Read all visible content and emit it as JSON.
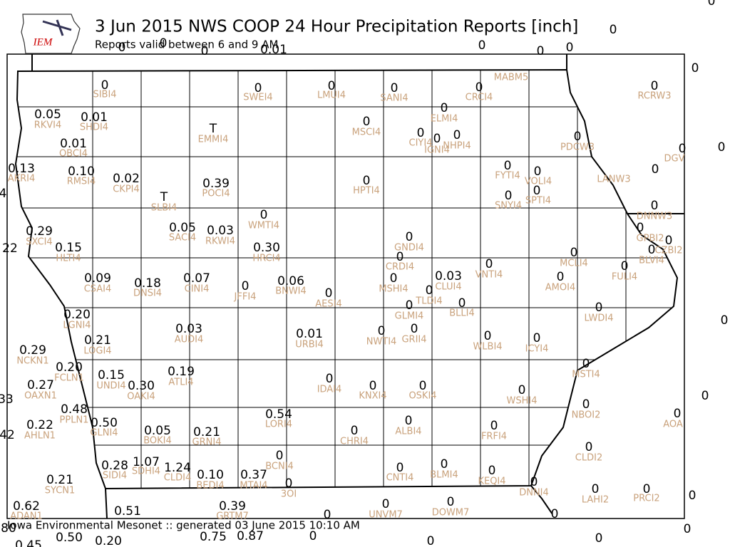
{
  "header": {
    "logo": "IEM",
    "title": "3 Jun 2015 NWS COOP 24 Hour Precipitation Reports [inch]",
    "subtitle": "Reports valid between 6 and 9 AM"
  },
  "footer": "Iowa Environmental Mesonet :: generated 03 June 2015 10:10 AM",
  "stations": [
    {
      "value": "0",
      "id": "SIBI4"
    },
    {
      "value": "0",
      "id": "SWEI4"
    },
    {
      "value": "0",
      "id": "LMUI4"
    },
    {
      "value": "0",
      "id": "SANI4"
    },
    {
      "value": "0",
      "id": "CRCI4"
    },
    {
      "value": "0",
      "id": "MABM5"
    },
    {
      "value": "0",
      "id": "RCRW3"
    },
    {
      "value": "0",
      "id": "ELMI4"
    },
    {
      "value": "0.05",
      "id": "RKVI4"
    },
    {
      "value": "0.01",
      "id": "SHDI4"
    },
    {
      "value": "T",
      "id": "EMMI4"
    },
    {
      "value": "0",
      "id": "MSCI4"
    },
    {
      "value": "0",
      "id": "CIYI4"
    },
    {
      "value": "0",
      "id": "IGNI4"
    },
    {
      "value": "0",
      "id": "NHPI4"
    },
    {
      "value": "0",
      "id": "PDCW3"
    },
    {
      "value": "0.01",
      "id": "OBCI4"
    },
    {
      "value": "0",
      "id": "DGV"
    },
    {
      "value": "0.13",
      "id": "AKRI4"
    },
    {
      "value": "0.10",
      "id": "RMSI4"
    },
    {
      "value": "0.02",
      "id": "CKPI4"
    },
    {
      "value": "0.39",
      "id": "POCI4"
    },
    {
      "value": "0",
      "id": "HPTI4"
    },
    {
      "value": "0",
      "id": "FYTI4"
    },
    {
      "value": "0",
      "id": "VOLI4"
    },
    {
      "value": "0",
      "id": "LANW3"
    },
    {
      "value": "T",
      "id": "SLBI4"
    },
    {
      "value": "0",
      "id": "SNYI4"
    },
    {
      "value": "0",
      "id": "SPTI4"
    },
    {
      "value": "0",
      "id": "DNNW3"
    },
    {
      "value": "0",
      "id": "WMTI4"
    },
    {
      "value": "0.29",
      "id": "SXCI4"
    },
    {
      "value": "0.05",
      "id": "SACI4"
    },
    {
      "value": "0.03",
      "id": "RKWI4"
    },
    {
      "value": "0",
      "id": "GNDI4"
    },
    {
      "value": "0",
      "id": "GPBI2"
    },
    {
      "value": "0",
      "id": "CZBI2"
    },
    {
      "value": "0.15",
      "id": "HLTI4"
    },
    {
      "value": "0.30",
      "id": "HRCI4"
    },
    {
      "value": "0",
      "id": "CRDI4"
    },
    {
      "value": "0",
      "id": "MCLI4"
    },
    {
      "value": "0",
      "id": "BLVI4"
    },
    {
      "value": "0",
      "id": "VNTI4"
    },
    {
      "value": "0",
      "id": "FULI4"
    },
    {
      "value": "0.09",
      "id": "CSAI4"
    },
    {
      "value": "0.18",
      "id": "DNSI4"
    },
    {
      "value": "0.07",
      "id": "CINI4"
    },
    {
      "value": "0",
      "id": "JFFI4"
    },
    {
      "value": "0.06",
      "id": "BNWI4"
    },
    {
      "value": "0",
      "id": "MSHI4"
    },
    {
      "value": "0.03",
      "id": "CLUI4"
    },
    {
      "value": "0",
      "id": "AMOI4"
    },
    {
      "value": "0",
      "id": "TLDI4"
    },
    {
      "value": "0",
      "id": "AESI4"
    },
    {
      "value": "0",
      "id": "BLLI4"
    },
    {
      "value": "0",
      "id": "GLMI4"
    },
    {
      "value": "0",
      "id": "LWDI4"
    },
    {
      "value": "0.20",
      "id": "LGNI4"
    },
    {
      "value": "0.03",
      "id": "AUDI4"
    },
    {
      "value": "0.01",
      "id": "URBI4"
    },
    {
      "value": "0",
      "id": "NWTI4"
    },
    {
      "value": "0",
      "id": "GRII4"
    },
    {
      "value": "0",
      "id": "WLBI4"
    },
    {
      "value": "0",
      "id": "ICYI4"
    },
    {
      "value": "0.21",
      "id": "LOGI4"
    },
    {
      "value": "0.29",
      "id": "NCKN1"
    },
    {
      "value": "0.19",
      "id": "ATLI4"
    },
    {
      "value": "0.20",
      "id": "FCLN1"
    },
    {
      "value": "0.15",
      "id": "UNDI4"
    },
    {
      "value": "0.30",
      "id": "OAKI4"
    },
    {
      "value": "0",
      "id": "MSTI4"
    },
    {
      "value": "0",
      "id": "IDAI4"
    },
    {
      "value": "0",
      "id": "KNXI4"
    },
    {
      "value": "0",
      "id": "OSKI4"
    },
    {
      "value": "0.27",
      "id": "OAXN1"
    },
    {
      "value": "0",
      "id": "WSHI4"
    },
    {
      "value": "0.48",
      "id": "PPLN1"
    },
    {
      "value": "0.54",
      "id": "LORI4"
    },
    {
      "value": "0",
      "id": "NBOI2"
    },
    {
      "value": "0",
      "id": "AOA"
    },
    {
      "value": "0.22",
      "id": "AHLN1"
    },
    {
      "value": "0.50",
      "id": "GLNI4"
    },
    {
      "value": "0.05",
      "id": "BOKI4"
    },
    {
      "value": "0.21",
      "id": "GRNI4"
    },
    {
      "value": "0",
      "id": "CHRI4"
    },
    {
      "value": "0",
      "id": "ALBI4"
    },
    {
      "value": "0",
      "id": "FRFI4"
    },
    {
      "value": "0",
      "id": "CLDI2"
    },
    {
      "value": "0",
      "id": "BCNI4"
    },
    {
      "value": "1.07",
      "id": "SDHI4"
    },
    {
      "value": "0.28",
      "id": "SIDI4"
    },
    {
      "value": "1.24",
      "id": "CLDI4"
    },
    {
      "value": "0.10",
      "id": "BEDI4"
    },
    {
      "value": "0.37",
      "id": "MTAI4"
    },
    {
      "value": "0",
      "id": "CNTI4"
    },
    {
      "value": "0",
      "id": "BLMI4"
    },
    {
      "value": "0",
      "id": "KEQI4"
    },
    {
      "value": "0",
      "id": "3OI"
    },
    {
      "value": "0",
      "id": "DNNI4"
    },
    {
      "value": "0",
      "id": "LAHI2"
    },
    {
      "value": "0",
      "id": "PRCI2"
    },
    {
      "value": "0.21",
      "id": "SYCN1"
    },
    {
      "value": "0.62",
      "id": "ADAN1"
    },
    {
      "value": "0.39",
      "id": "GRTM7"
    },
    {
      "value": "0",
      "id": "UNVM7"
    },
    {
      "value": "0",
      "id": "DOWM7"
    }
  ],
  "unlabeled_values": [
    "0",
    "0",
    "0",
    "0.01",
    "0",
    "0",
    "0",
    "0",
    "0",
    "0",
    "4",
    "22",
    "0",
    "0",
    "33",
    "42",
    "0",
    "0.51",
    "0",
    "0",
    "80",
    "0.50",
    "0.20",
    "0.75",
    "0.87",
    "0",
    "0",
    "0",
    "0",
    "0.45"
  ]
}
